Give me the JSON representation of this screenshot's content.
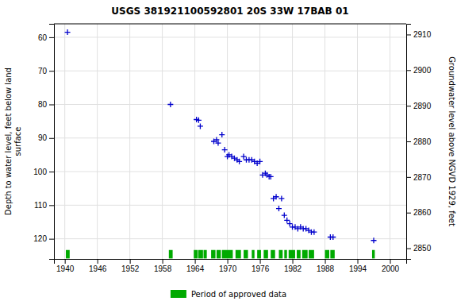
{
  "chart_data": {
    "type": "scatter",
    "title": "USGS 381921100592801 20S 33W 17BAB 01",
    "ylabel": "Depth to water level, feet below land\nsurface",
    "y2label": "Groundwater level above NGVD 1929, feet",
    "xlim": [
      1938,
      2003
    ],
    "xticks": [
      1940,
      1946,
      1952,
      1958,
      1964,
      1970,
      1976,
      1982,
      1988,
      1994,
      2000
    ],
    "ylim": [
      126,
      56
    ],
    "yticks": [
      60,
      70,
      80,
      90,
      100,
      110,
      120
    ],
    "y2lim": [
      2847,
      2913
    ],
    "y2ticks": [
      2850,
      2860,
      2870,
      2880,
      2890,
      2900,
      2910
    ],
    "grid": true,
    "series": [
      {
        "type": "scatter",
        "marker": "plus",
        "color": "#0000cc",
        "x": [
          1940.5,
          1959.5,
          1964.3,
          1964.7,
          1965.0,
          1967.5,
          1968.0,
          1968.3,
          1969.0,
          1969.5,
          1970.0,
          1970.3,
          1970.8,
          1971.3,
          1971.8,
          1972.2,
          1973.0,
          1973.5,
          1974.0,
          1974.5,
          1975.0,
          1975.5,
          1976.0,
          1976.5,
          1977.0,
          1977.3,
          1977.7,
          1978.0,
          1978.5,
          1979.0,
          1979.5,
          1980.0,
          1980.5,
          1981.0,
          1981.5,
          1982.0,
          1982.5,
          1983.0,
          1983.5,
          1984.0,
          1984.5,
          1985.0,
          1985.5,
          1986.0,
          1989.0,
          1989.5,
          1997.0
        ],
        "values": [
          58.5,
          80.0,
          84.5,
          84.7,
          86.5,
          91.0,
          90.5,
          91.5,
          89.0,
          93.5,
          95.5,
          95.0,
          95.5,
          96.0,
          96.5,
          97.0,
          95.5,
          96.5,
          96.5,
          96.5,
          97.0,
          97.5,
          97.0,
          101.0,
          100.5,
          101.0,
          101.5,
          101.5,
          108.0,
          107.5,
          111.0,
          108.0,
          113.0,
          114.5,
          115.5,
          116.5,
          116.5,
          117.0,
          116.5,
          117.0,
          117.0,
          117.5,
          118.0,
          118.0,
          119.5,
          119.5,
          120.5
        ]
      },
      {
        "name": "Period of approved data",
        "type": "span",
        "color": "#00aa00",
        "periods": [
          [
            1940.2,
            1940.9
          ],
          [
            1959.2,
            1959.9
          ],
          [
            1963.8,
            1964.5
          ],
          [
            1964.6,
            1965.5
          ],
          [
            1965.6,
            1966.2
          ],
          [
            1967.0,
            1967.8
          ],
          [
            1968.0,
            1968.8
          ],
          [
            1969.0,
            1971.0
          ],
          [
            1971.5,
            1972.5
          ],
          [
            1973.0,
            1973.8
          ],
          [
            1974.5,
            1975.0
          ],
          [
            1975.5,
            1976.2
          ],
          [
            1976.7,
            1977.5
          ],
          [
            1978.0,
            1978.8
          ],
          [
            1979.5,
            1980.2
          ],
          [
            1980.5,
            1981.0
          ],
          [
            1981.3,
            1982.5
          ],
          [
            1982.8,
            1983.5
          ],
          [
            1983.8,
            1984.8
          ],
          [
            1985.0,
            1986.0
          ],
          [
            1988.0,
            1988.8
          ],
          [
            1989.0,
            1989.8
          ],
          [
            1996.7,
            1997.2
          ]
        ]
      }
    ]
  }
}
